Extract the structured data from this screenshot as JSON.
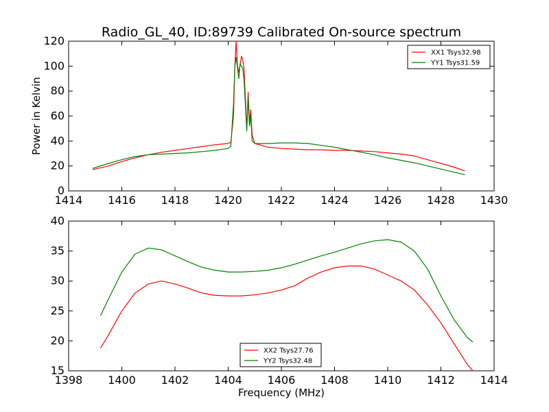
{
  "figure_title": "Radio_GL_40, ID:89739 Calibrated On-source spectrum",
  "colors": {
    "red_series": "#ff0000",
    "green_series": "#008000"
  },
  "chart_data": [
    {
      "type": "line",
      "title": "Radio_GL_40, ID:89739 Calibrated On-source spectrum",
      "xlabel": "",
      "ylabel": "Power in Kelvin",
      "xlim": [
        1414,
        1430
      ],
      "ylim": [
        0,
        120
      ],
      "xticks": [
        "1414",
        "1416",
        "1418",
        "1420",
        "1422",
        "1424",
        "1426",
        "1428",
        "1430"
      ],
      "yticks": [
        "0",
        "20",
        "40",
        "60",
        "80",
        "100",
        "120"
      ],
      "legend_position": "top-right",
      "grid": false,
      "series": [
        {
          "name": "XX1 Tsys32.98",
          "color": "#ff0000",
          "x": [
            1414.9,
            1415.5,
            1416.0,
            1416.5,
            1417.0,
            1417.5,
            1418.0,
            1418.5,
            1419.0,
            1419.5,
            1420.0,
            1420.1,
            1420.2,
            1420.25,
            1420.3,
            1420.35,
            1420.4,
            1420.5,
            1420.55,
            1420.6,
            1420.7,
            1420.75,
            1420.8,
            1420.85,
            1420.9,
            1421.0,
            1421.5,
            1422.0,
            1422.5,
            1423.0,
            1423.5,
            1424.0,
            1424.5,
            1425.0,
            1425.5,
            1426.0,
            1426.5,
            1427.0,
            1427.5,
            1428.0,
            1428.5,
            1428.9
          ],
          "y": [
            17,
            20,
            23.5,
            26.5,
            29,
            31,
            32.5,
            34,
            35.5,
            37,
            38,
            39,
            60,
            100,
            120,
            100,
            95,
            108,
            105,
            97,
            50,
            79,
            55,
            65,
            45,
            38,
            35,
            34,
            33.5,
            33,
            33,
            32.5,
            32.5,
            32,
            31.5,
            30.5,
            29.5,
            28,
            25,
            22,
            19,
            16
          ]
        },
        {
          "name": "YY1 Tsys31.59",
          "color": "#008000",
          "x": [
            1414.9,
            1415.5,
            1416.0,
            1416.5,
            1417.0,
            1417.5,
            1418.0,
            1418.5,
            1419.0,
            1419.5,
            1420.0,
            1420.1,
            1420.2,
            1420.25,
            1420.3,
            1420.4,
            1420.45,
            1420.55,
            1420.6,
            1420.7,
            1420.75,
            1420.8,
            1420.85,
            1420.9,
            1421.0,
            1421.5,
            1422.0,
            1422.5,
            1423.0,
            1423.5,
            1424.0,
            1424.5,
            1425.0,
            1425.5,
            1426.0,
            1426.5,
            1427.0,
            1427.5,
            1428.0,
            1428.5,
            1428.9
          ],
          "y": [
            18,
            22,
            25,
            27.5,
            29,
            29.5,
            30,
            30.5,
            31.5,
            32.5,
            34,
            36,
            70,
            100,
            107,
            90,
            102,
            98,
            88,
            48,
            75,
            52,
            60,
            40,
            38,
            38,
            38.5,
            38.5,
            38,
            36.5,
            35,
            33,
            31,
            29,
            26.5,
            24.5,
            22.5,
            20,
            17.5,
            15,
            13
          ]
        }
      ]
    },
    {
      "type": "line",
      "title": "",
      "xlabel": "Frequency (MHz)",
      "ylabel": "",
      "xlim": [
        1398,
        1414
      ],
      "ylim": [
        15,
        40
      ],
      "xticks": [
        "1398",
        "1400",
        "1402",
        "1404",
        "1406",
        "1408",
        "1410",
        "1412",
        "1414"
      ],
      "yticks": [
        "15",
        "20",
        "25",
        "30",
        "35",
        "40"
      ],
      "legend_position": "bottom-center",
      "grid": false,
      "series": [
        {
          "name": "XX2 Tsys27.76",
          "color": "#ff0000",
          "x": [
            1399.2,
            1399.5,
            1400.0,
            1400.5,
            1401.0,
            1401.5,
            1402.0,
            1402.5,
            1403.0,
            1403.5,
            1404.0,
            1404.5,
            1405.0,
            1405.5,
            1406.0,
            1406.5,
            1407.0,
            1407.5,
            1408.0,
            1408.5,
            1409.0,
            1409.5,
            1410.0,
            1410.5,
            1411.0,
            1411.5,
            1412.0,
            1412.5,
            1413.0,
            1413.2
          ],
          "y": [
            18.8,
            21,
            25,
            28,
            29.5,
            30,
            29.5,
            28.8,
            28,
            27.6,
            27.5,
            27.5,
            27.7,
            28,
            28.5,
            29.2,
            30.5,
            31.5,
            32.2,
            32.5,
            32.5,
            32,
            31,
            30,
            28.5,
            26,
            23,
            19.5,
            16,
            15
          ]
        },
        {
          "name": "YY2 Tsys32.48",
          "color": "#008000",
          "x": [
            1399.2,
            1399.5,
            1400.0,
            1400.5,
            1401.0,
            1401.5,
            1402.0,
            1402.5,
            1403.0,
            1403.5,
            1404.0,
            1404.5,
            1405.0,
            1405.5,
            1406.0,
            1406.5,
            1407.0,
            1407.5,
            1408.0,
            1408.5,
            1409.0,
            1409.5,
            1410.0,
            1410.5,
            1411.0,
            1411.5,
            1412.0,
            1412.5,
            1413.0,
            1413.2
          ],
          "y": [
            24.2,
            27,
            31.5,
            34.5,
            35.5,
            35.2,
            34.2,
            33.2,
            32.3,
            31.8,
            31.5,
            31.5,
            31.6,
            31.8,
            32.2,
            32.8,
            33.5,
            34.2,
            34.8,
            35.5,
            36.2,
            36.7,
            36.9,
            36.5,
            35,
            32,
            27.5,
            23.5,
            20.5,
            19.8
          ]
        }
      ]
    }
  ]
}
